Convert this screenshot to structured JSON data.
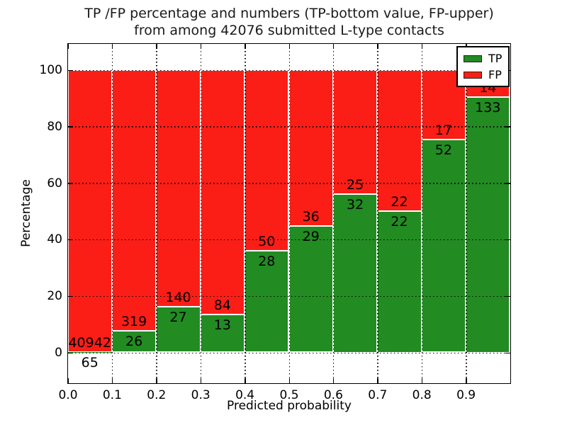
{
  "chart_data": {
    "type": "bar",
    "stacked": true,
    "title_line1": "TP /FP percentage and numbers (TP-bottom value, FP-upper)",
    "title_line2": "from among 42076 submitted L-type contacts",
    "xlabel": "Predicted probability",
    "ylabel": "Percentage",
    "total_contacts": 42076,
    "bins": [
      0.0,
      0.1,
      0.2,
      0.3,
      0.4,
      0.5,
      0.6,
      0.7,
      0.8,
      0.9
    ],
    "bin_width": 0.1,
    "series": [
      {
        "name": "TP",
        "color": "#228b22",
        "values": [
          65,
          26,
          27,
          13,
          28,
          29,
          32,
          22,
          52,
          133
        ]
      },
      {
        "name": "FP",
        "color": "#fa1e16",
        "values": [
          40942,
          319,
          140,
          84,
          50,
          36,
          25,
          22,
          17,
          14
        ]
      }
    ],
    "tp_percentages": [
      0.16,
      7.54,
      16.17,
      13.4,
      35.9,
      44.62,
      56.14,
      50.0,
      75.36,
      90.48
    ],
    "x_tick_labels": [
      "0.0",
      "0.1",
      "0.2",
      "0.3",
      "0.4",
      "0.5",
      "0.6",
      "0.7",
      "0.8",
      "0.9"
    ],
    "y_tick_labels": [
      "0",
      "20",
      "40",
      "60",
      "80",
      "100"
    ],
    "xlim": [
      0.0,
      1.0
    ],
    "ylim": [
      -11,
      109
    ],
    "grid": "dotted",
    "bar_edge_color": "#ffffff",
    "legend": {
      "position": "upper right",
      "entries": [
        "TP",
        "FP"
      ]
    }
  }
}
